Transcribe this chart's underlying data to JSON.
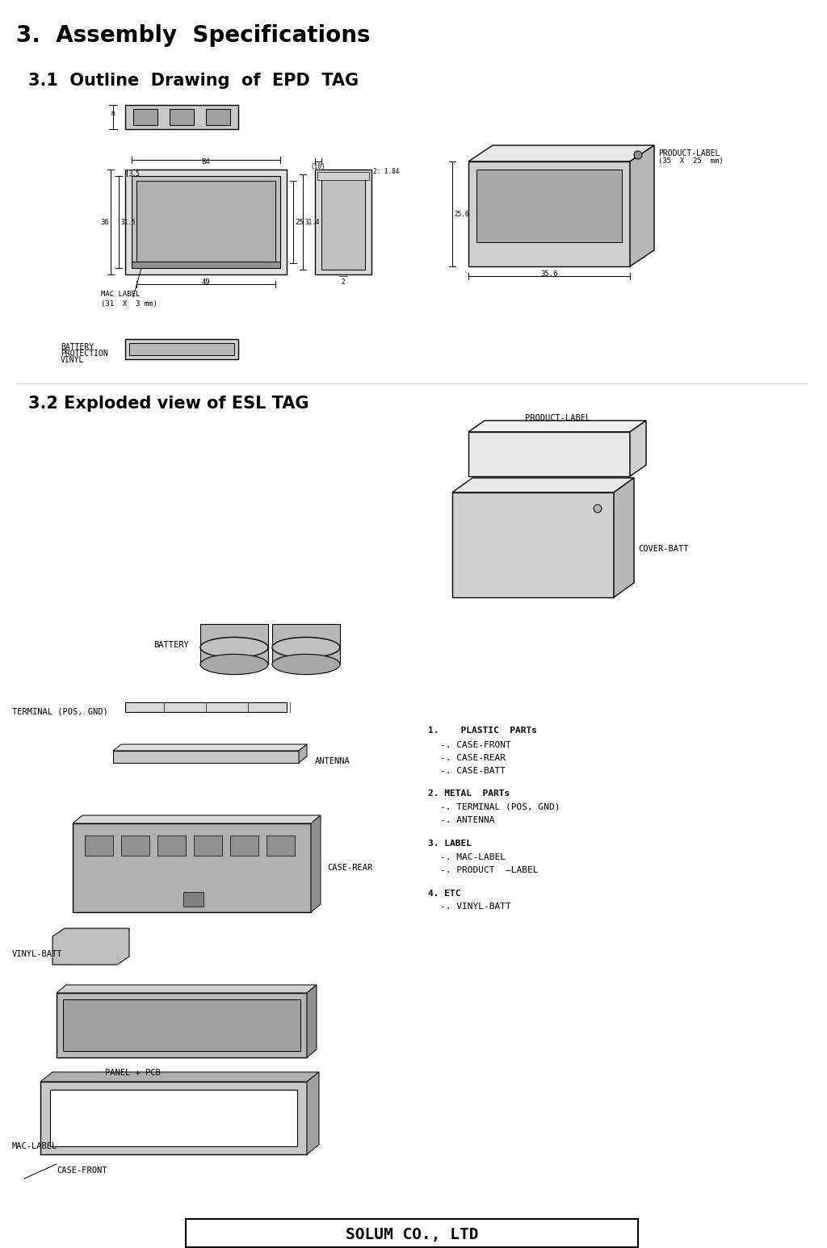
{
  "title": "3.  Assembly  Specifications",
  "section31": "3.1  Outline  Drawing  of  EPD  TAG",
  "section32": "3.2 Exploded view of ESL TAG",
  "footer_text": "SOLUM CO., LTD",
  "bg_color": "#ffffff",
  "text_color": "#000000",
  "gray_light": "#c8c8c8",
  "gray_mid": "#a0a0a0",
  "gray_dark": "#808080",
  "gray_darker": "#606060",
  "line_color": "#000000",
  "font_size_title": 20,
  "font_size_section": 15,
  "font_size_label": 7,
  "font_size_dim": 6.5,
  "font_size_footer": 14
}
